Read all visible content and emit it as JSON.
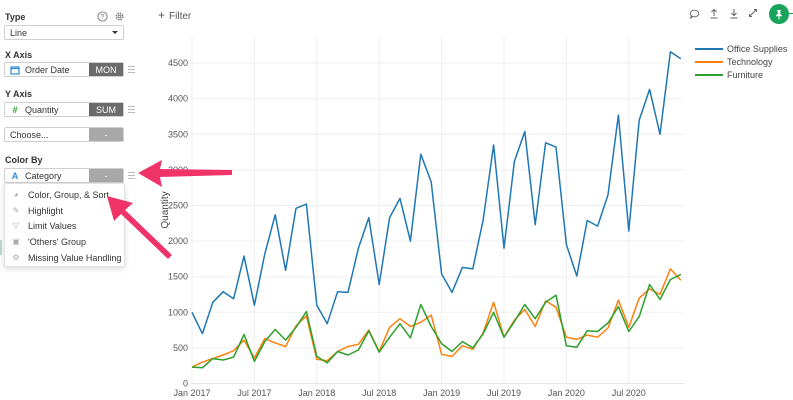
{
  "sidebar": {
    "type": {
      "label": "Type",
      "value": "Line",
      "help_icon": "question-circle-icon",
      "settings_icon": "gear-icon"
    },
    "x_axis": {
      "label": "X Axis",
      "field": "Order Date",
      "field_icon": "calendar-icon",
      "agg": "MON"
    },
    "y_axis": {
      "label": "Y Axis",
      "field": "Quantity",
      "field_icon": "hash-icon",
      "agg": "SUM"
    },
    "extra": {
      "placeholder": "Choose...",
      "agg": "-"
    },
    "color_by": {
      "label": "Color By",
      "field": "Category",
      "field_icon": "text-A-icon",
      "agg": "-"
    },
    "menu": {
      "items": [
        {
          "label": "Color, Group, & Sort",
          "icon": "palette-icon"
        },
        {
          "label": "Highlight",
          "icon": "pencil-icon"
        },
        {
          "label": "Limit Values",
          "icon": "filter-icon"
        },
        {
          "label": "'Others' Group",
          "icon": "group-icon"
        },
        {
          "label": "Missing Value Handling",
          "icon": "gear-icon"
        }
      ]
    }
  },
  "toolbar": {
    "filter_label": "Filter",
    "icons": [
      "comment-icon",
      "upload-icon",
      "download-icon",
      "expand-icon",
      "pin-icon"
    ]
  },
  "colors": {
    "office_supplies": "#1f77b4",
    "technology": "#ff7f0e",
    "furniture": "#2ca02c",
    "arrow": "#f0346a",
    "pin": "#1aa35a"
  },
  "chart_data": {
    "type": "line",
    "title": "",
    "xlabel": "",
    "ylabel": "Quantity",
    "ylim": [
      0,
      4800
    ],
    "yticks": [
      0,
      500,
      1000,
      1500,
      2000,
      2500,
      3000,
      3500,
      4000,
      4500
    ],
    "xticks": [
      "Jan 2017",
      "Jul 2017",
      "Jan 2018",
      "Jul 2018",
      "Jan 2019",
      "Jul 2019",
      "Jan 2020",
      "Jul 2020"
    ],
    "grid": true,
    "legend_position": "top-right",
    "x": [
      "2017-01",
      "2017-02",
      "2017-03",
      "2017-04",
      "2017-05",
      "2017-06",
      "2017-07",
      "2017-08",
      "2017-09",
      "2017-10",
      "2017-11",
      "2017-12",
      "2018-01",
      "2018-02",
      "2018-03",
      "2018-04",
      "2018-05",
      "2018-06",
      "2018-07",
      "2018-08",
      "2018-09",
      "2018-10",
      "2018-11",
      "2018-12",
      "2019-01",
      "2019-02",
      "2019-03",
      "2019-04",
      "2019-05",
      "2019-06",
      "2019-07",
      "2019-08",
      "2019-09",
      "2019-10",
      "2019-11",
      "2019-12",
      "2020-01",
      "2020-02",
      "2020-03",
      "2020-04",
      "2020-05",
      "2020-06",
      "2020-07",
      "2020-08",
      "2020-09",
      "2020-10",
      "2020-11",
      "2020-12"
    ],
    "series": [
      {
        "name": "Office Supplies",
        "values": [
          1000,
          700,
          1140,
          1290,
          1190,
          1790,
          1100,
          1820,
          2370,
          1590,
          2460,
          2520,
          1100,
          840,
          1290,
          1280,
          1900,
          2330,
          1390,
          2330,
          2600,
          2000,
          3220,
          2830,
          1540,
          1280,
          1630,
          1610,
          2300,
          3350,
          1900,
          3120,
          3540,
          2230,
          3380,
          3320,
          1950,
          1510,
          2290,
          2210,
          2650,
          3770,
          2140,
          3700,
          4130,
          3500,
          4660,
          4560
        ]
      },
      {
        "name": "Technology",
        "values": [
          230,
          300,
          350,
          400,
          460,
          610,
          360,
          630,
          570,
          520,
          810,
          950,
          340,
          320,
          450,
          520,
          550,
          750,
          450,
          790,
          910,
          800,
          860,
          960,
          410,
          380,
          530,
          480,
          710,
          1140,
          650,
          890,
          1040,
          800,
          1160,
          1070,
          650,
          620,
          680,
          650,
          780,
          1170,
          790,
          1200,
          1330,
          1250,
          1610,
          1450
        ]
      },
      {
        "name": "Furniture",
        "values": [
          230,
          220,
          350,
          330,
          370,
          690,
          310,
          590,
          760,
          610,
          790,
          1010,
          380,
          290,
          450,
          400,
          470,
          740,
          440,
          650,
          840,
          640,
          1110,
          800,
          560,
          450,
          590,
          500,
          700,
          1000,
          650,
          870,
          1110,
          910,
          1140,
          1240,
          530,
          510,
          740,
          730,
          850,
          1080,
          730,
          940,
          1390,
          1180,
          1460,
          1530
        ]
      }
    ]
  }
}
